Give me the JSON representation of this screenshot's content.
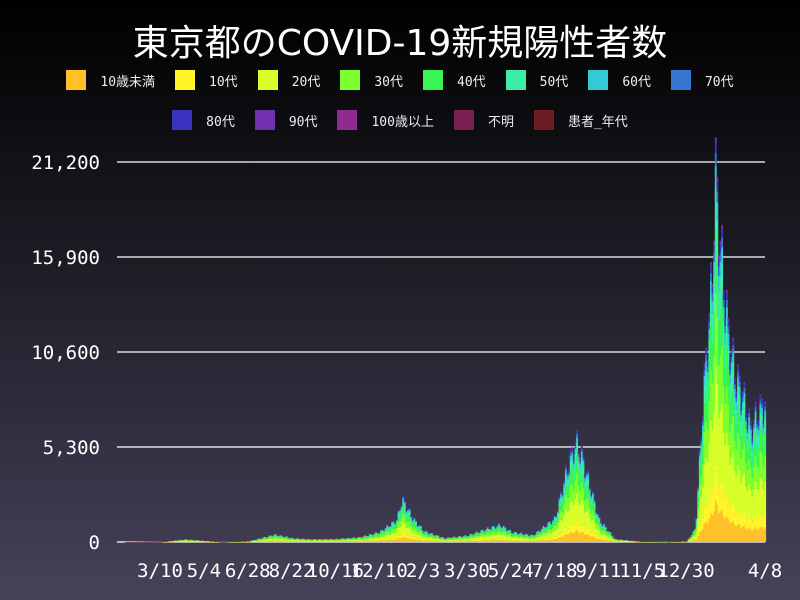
{
  "chart_data": {
    "type": "bar",
    "stacked": true,
    "title": "東京都のCOVID-19新規陽性者数",
    "xlabel": "",
    "ylabel": "",
    "ylim": [
      0,
      21200
    ],
    "yticks": [
      "0",
      "5,300",
      "10,600",
      "15,900",
      "21,200"
    ],
    "ytick_values": [
      0,
      5300,
      10600,
      15900,
      21200
    ],
    "xticks": [
      {
        "label": "3/10",
        "date": "2020-03-10"
      },
      {
        "label": "5/4",
        "date": "2020-05-04"
      },
      {
        "label": "6/28",
        "date": "2020-06-28"
      },
      {
        "label": "8/22",
        "date": "2020-08-22"
      },
      {
        "label": "10/16",
        "date": "2020-10-16"
      },
      {
        "label": "12/10",
        "date": "2020-12-10"
      },
      {
        "label": "2/3",
        "date": "2021-02-03"
      },
      {
        "label": "3/30",
        "date": "2021-03-30"
      },
      {
        "label": "5/24",
        "date": "2021-05-24"
      },
      {
        "label": "7/18",
        "date": "2021-07-18"
      },
      {
        "label": "9/11",
        "date": "2021-09-11"
      },
      {
        "label": "11/5",
        "date": "2021-11-05"
      },
      {
        "label": "12/30",
        "date": "2021-12-30"
      },
      {
        "label": "4/8",
        "date": "2022-04-08"
      }
    ],
    "xlim": [
      "2020-01-16",
      "2022-04-08"
    ],
    "grid": true,
    "legend_position": "top",
    "dates": [
      "2020-01-24",
      "2020-02-15",
      "2020-03-10",
      "2020-04-10",
      "2020-05-04",
      "2020-05-25",
      "2020-06-28",
      "2020-07-31",
      "2020-08-22",
      "2020-09-15",
      "2020-10-16",
      "2020-11-15",
      "2020-12-10",
      "2020-12-31",
      "2021-01-07",
      "2021-01-20",
      "2021-02-03",
      "2021-03-01",
      "2021-03-30",
      "2021-04-25",
      "2021-05-10",
      "2021-05-24",
      "2021-06-20",
      "2021-07-18",
      "2021-07-31",
      "2021-08-13",
      "2021-08-20",
      "2021-09-01",
      "2021-09-11",
      "2021-10-01",
      "2021-11-05",
      "2021-12-10",
      "2021-12-30",
      "2022-01-10",
      "2022-01-20",
      "2022-02-01",
      "2022-02-03",
      "2022-02-10",
      "2022-02-20",
      "2022-03-01",
      "2022-03-10",
      "2022-03-20",
      "2022-03-30",
      "2022-04-08"
    ],
    "total": [
      0,
      2,
      10,
      180,
      90,
      10,
      60,
      450,
      250,
      180,
      200,
      300,
      600,
      1300,
      2500,
      1400,
      650,
      250,
      400,
      800,
      1000,
      600,
      400,
      1400,
      3900,
      5800,
      5000,
      3000,
      1300,
      200,
      30,
      20,
      60,
      800,
      8600,
      16000,
      21500,
      17000,
      12000,
      9500,
      8500,
      6500,
      7500,
      8000
    ],
    "series": [
      {
        "name": "10歳未満",
        "color": "#ffc02a",
        "share": 0.1
      },
      {
        "name": "10代",
        "color": "#fff52a",
        "share": 0.09
      },
      {
        "name": "20代",
        "color": "#d9ff2a",
        "share": 0.24
      },
      {
        "name": "30代",
        "color": "#7fff2e",
        "share": 0.18
      },
      {
        "name": "40代",
        "color": "#38f554",
        "share": 0.15
      },
      {
        "name": "50代",
        "color": "#3aeeaa",
        "share": 0.11
      },
      {
        "name": "60代",
        "color": "#36c8d8",
        "share": 0.05
      },
      {
        "name": "70代",
        "color": "#3574d0",
        "share": 0.03
      },
      {
        "name": "80代",
        "color": "#3a33c0",
        "share": 0.025
      },
      {
        "name": "90代",
        "color": "#7030b0",
        "share": 0.01
      },
      {
        "name": "100歳以上",
        "color": "#902a90",
        "share": 0.003
      },
      {
        "name": "不明",
        "color": "#7a2050",
        "share": 0.001
      },
      {
        "name": "患者_年代",
        "color": "#6a1e22",
        "share": 0.001
      }
    ]
  }
}
